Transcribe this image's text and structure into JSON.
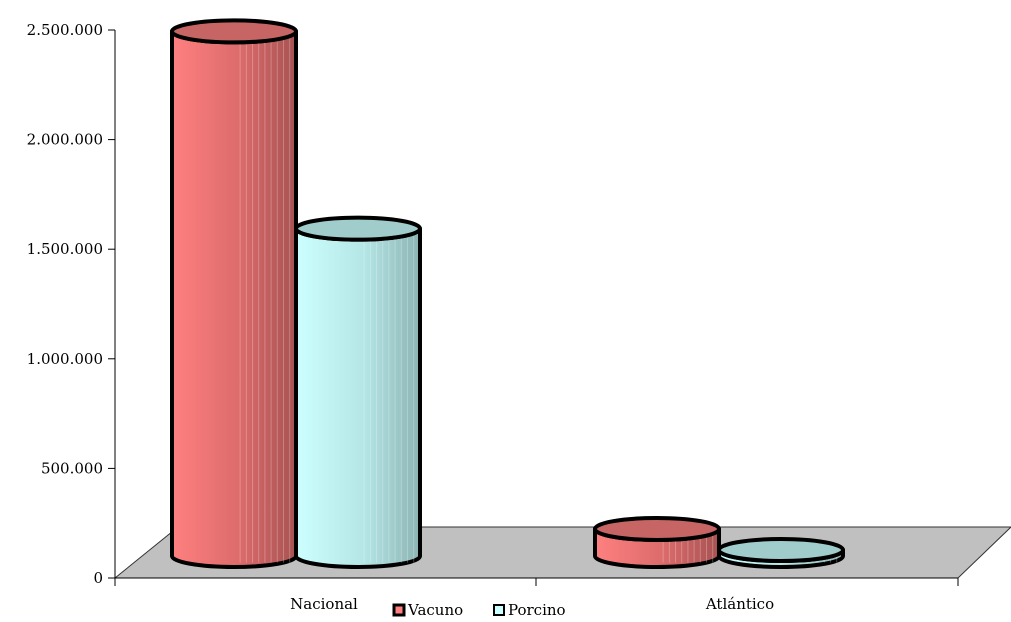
{
  "chart_data": {
    "type": "bar",
    "title": "",
    "xlabel": "",
    "ylabel": "",
    "categories": [
      "Nacional",
      "Atlántico"
    ],
    "series": [
      {
        "name": "Vacuno",
        "values": [
          2480000,
          210000
        ]
      },
      {
        "name": "Porcino",
        "values": [
          1580000,
          15000
        ]
      }
    ],
    "ylim": [
      0,
      2500000
    ],
    "yticks": [
      0,
      500000,
      1000000,
      1500000,
      2000000,
      2500000
    ],
    "ytick_labels": [
      "0",
      "500.000",
      "1.000.000",
      "1.500.000",
      "2.000.000",
      "2.500.000"
    ],
    "grid": false,
    "legend": "bottom-center",
    "style": "3d-cylinder",
    "colors": {
      "Vacuno": "#ff8080",
      "Porcino": "#ccffff",
      "floor": "#c0c0c0",
      "outline": "#000000"
    }
  }
}
